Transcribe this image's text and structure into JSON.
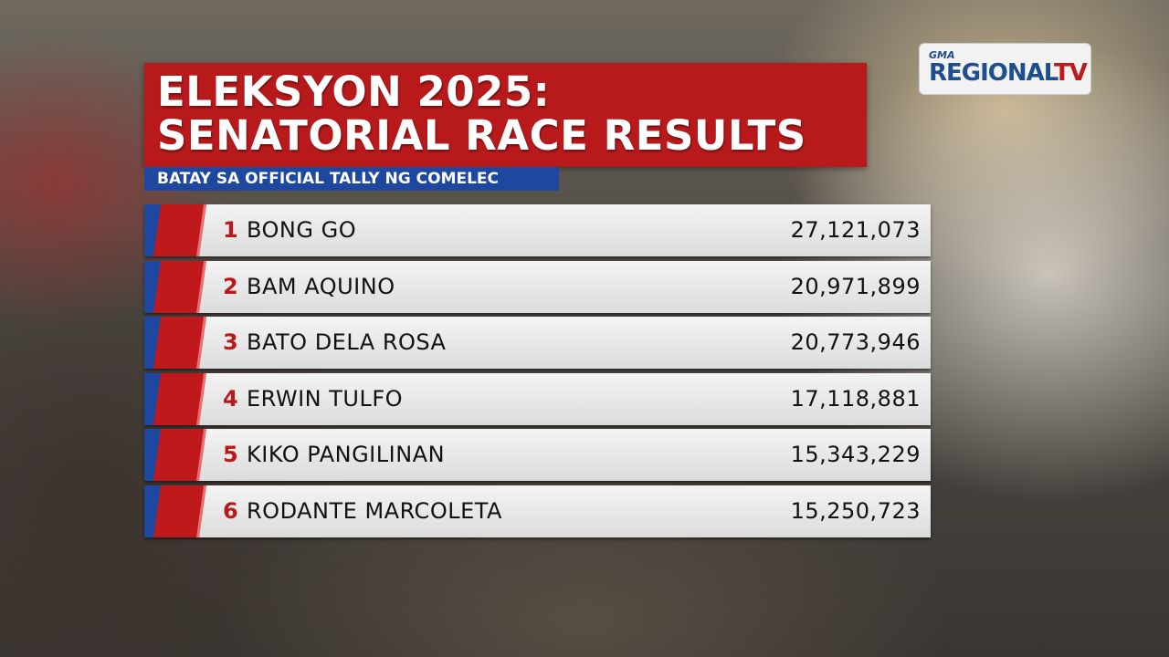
{
  "header": {
    "title_line1": "ELEKSYON 2025:",
    "title_line2": "SENATORIAL RACE RESULTS",
    "subtitle": "BATAY SA OFFICIAL TALLY NG COMELEC"
  },
  "logo": {
    "top": "GMA",
    "main": "REGIONAL",
    "suffix": "TV"
  },
  "results": [
    {
      "rank": "1",
      "name": "BONG GO",
      "votes": "27,121,073"
    },
    {
      "rank": "2",
      "name": "BAM AQUINO",
      "votes": "20,971,899"
    },
    {
      "rank": "3",
      "name": "BATO DELA ROSA",
      "votes": "20,773,946"
    },
    {
      "rank": "4",
      "name": "ERWIN TULFO",
      "votes": "17,118,881"
    },
    {
      "rank": "5",
      "name": "KIKO PANGILINAN",
      "votes": "15,343,229"
    },
    {
      "rank": "6",
      "name": "RODANTE MARCOLETA",
      "votes": "15,250,723"
    }
  ],
  "colors": {
    "red": "#b81a1c",
    "blue": "#1e47a0"
  }
}
